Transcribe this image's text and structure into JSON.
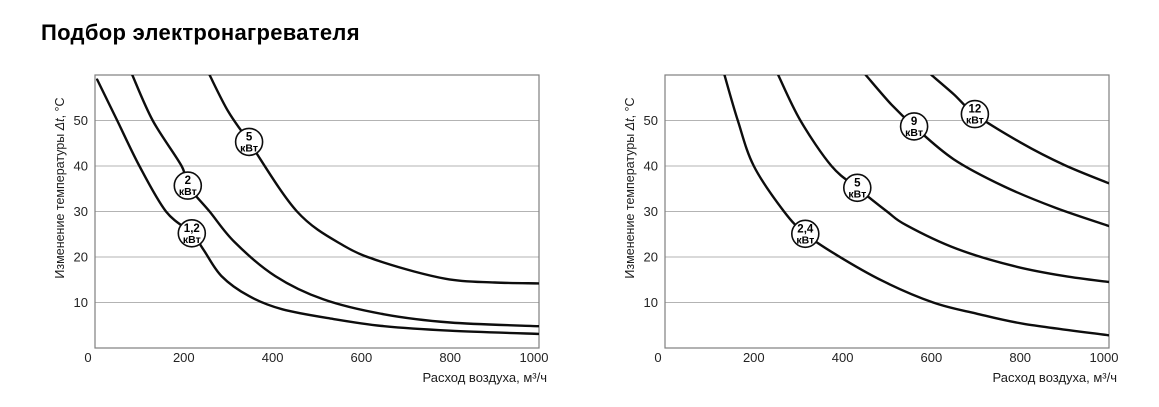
{
  "page": {
    "title": "Подбор электронагревателя",
    "background": "#ffffff"
  },
  "colors": {
    "curve": "#0d0d0d",
    "grid": "#b3b3b3",
    "border": "#7f7f7f",
    "tick_text": "#232323",
    "circle_fill": "#ffffff"
  },
  "chart_data": [
    {
      "type": "line",
      "title": "",
      "xlabel": "Расход воздуха, м³/ч",
      "ylabel": "Изменение температуры Δt, °C",
      "ylabel_parts": [
        {
          "text": "Изменение температуры ",
          "style": "normal"
        },
        {
          "text": "Δt",
          "style": "italic"
        },
        {
          "text": ", °C",
          "style": "normal"
        }
      ],
      "xlim": [
        0,
        1000
      ],
      "ylim": [
        0,
        60
      ],
      "xticks": [
        0,
        200,
        400,
        600,
        800,
        1000
      ],
      "yticks": [
        10,
        20,
        30,
        40,
        50
      ],
      "grid": "horizontal-only",
      "legend": "labels-on-curves",
      "series": [
        {
          "name": "1,2 кВт",
          "label": {
            "value": "1,2",
            "unit": "кВт",
            "at": [
              218,
              25.2
            ]
          },
          "points": [
            [
              5,
              59
            ],
            [
              50,
              50
            ],
            [
              100,
              40
            ],
            [
              160,
              30
            ],
            [
              218,
              25.2
            ],
            [
              245,
              21.5
            ],
            [
              285,
              15.8
            ],
            [
              347,
              11.4
            ],
            [
              422,
              8.5
            ],
            [
              536,
              6.4
            ],
            [
              651,
              4.8
            ],
            [
              800,
              3.8
            ],
            [
              1000,
              3.1
            ]
          ]
        },
        {
          "name": "2 кВт",
          "label": {
            "value": "2",
            "unit": "кВт",
            "at": [
              209,
              35.7
            ]
          },
          "points": [
            [
              84,
              60
            ],
            [
              130,
              50
            ],
            [
              195,
              40
            ],
            [
              209,
              35.7
            ],
            [
              258,
              30
            ],
            [
              315,
              23.2
            ],
            [
              406,
              15.8
            ],
            [
              514,
              10.7
            ],
            [
              651,
              7.4
            ],
            [
              800,
              5.6
            ],
            [
              1000,
              4.8
            ]
          ]
        },
        {
          "name": "5 кВт",
          "label": {
            "value": "5",
            "unit": "кВт",
            "at": [
              347,
              45.3
            ]
          },
          "points": [
            [
              258,
              60
            ],
            [
              300,
              52
            ],
            [
              347,
              45.3
            ],
            [
              455,
              30
            ],
            [
              560,
              22.5
            ],
            [
              650,
              18.8
            ],
            [
              790,
              15.2
            ],
            [
              900,
              14.4
            ],
            [
              1000,
              14.2
            ]
          ]
        }
      ]
    },
    {
      "type": "line",
      "title": "",
      "xlabel": "Расход воздуха, м³/ч",
      "ylabel": "Изменение температуры Δt, °C",
      "ylabel_parts": [
        {
          "text": "Изменение температуры ",
          "style": "normal"
        },
        {
          "text": "Δt",
          "style": "italic"
        },
        {
          "text": ", °C",
          "style": "normal"
        }
      ],
      "xlim": [
        0,
        1000
      ],
      "ylim": [
        0,
        60
      ],
      "xticks": [
        0,
        200,
        400,
        600,
        800,
        1000
      ],
      "yticks": [
        10,
        20,
        30,
        40,
        50
      ],
      "grid": "horizontal-only",
      "legend": "labels-on-curves",
      "series": [
        {
          "name": "2,4 кВт",
          "label": {
            "value": "2,4",
            "unit": "кВт",
            "at": [
              316,
              25.1
            ]
          },
          "points": [
            [
              134,
              60
            ],
            [
              164,
              50
            ],
            [
              200,
              40
            ],
            [
              268,
              30
            ],
            [
              316,
              25.1
            ],
            [
              384,
              20.6
            ],
            [
              491,
              14.7
            ],
            [
              604,
              10
            ],
            [
              700,
              7.6
            ],
            [
              809,
              5.3
            ],
            [
              1000,
              2.8
            ]
          ]
        },
        {
          "name": "5 кВт",
          "label": {
            "value": "5",
            "unit": "кВт",
            "at": [
              433,
              35.2
            ]
          },
          "points": [
            [
              255,
              60
            ],
            [
              305,
              50
            ],
            [
              375,
              40
            ],
            [
              433,
              35.2
            ],
            [
              500,
              30
            ],
            [
              543,
              27
            ],
            [
              657,
              21.8
            ],
            [
              786,
              18
            ],
            [
              900,
              15.8
            ],
            [
              1000,
              14.5
            ]
          ]
        },
        {
          "name": "9 кВт",
          "label": {
            "value": "9",
            "unit": "кВт",
            "at": [
              561,
              48.7
            ]
          },
          "points": [
            [
              452,
              60
            ],
            [
              510,
              53.5
            ],
            [
              561,
              48.7
            ],
            [
              650,
              41.5
            ],
            [
              764,
              35.5
            ],
            [
              880,
              30.8
            ],
            [
              1000,
              26.8
            ]
          ]
        },
        {
          "name": "12 кВт",
          "label": {
            "value": "12",
            "unit": "кВт",
            "at": [
              698,
              51.4
            ]
          },
          "points": [
            [
              600,
              60
            ],
            [
              650,
              55.8
            ],
            [
              698,
              51.4
            ],
            [
              800,
              45.2
            ],
            [
              900,
              40.2
            ],
            [
              1000,
              36.2
            ]
          ]
        }
      ]
    }
  ]
}
